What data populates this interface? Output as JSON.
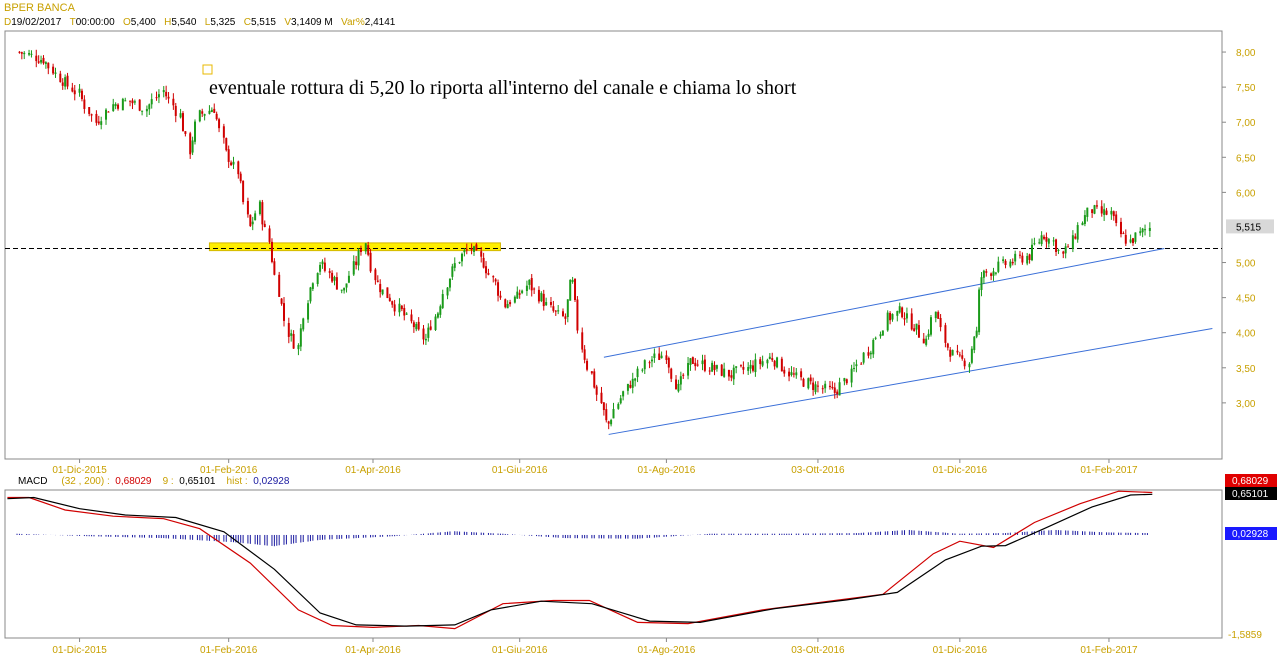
{
  "header": {
    "title": "BPER BANCA",
    "ohlc": [
      {
        "k": "D",
        "v": "19/02/2017"
      },
      {
        "k": "T",
        "v": "00:00:00"
      },
      {
        "k": "O",
        "v": "5,400"
      },
      {
        "k": "H",
        "v": "5,540"
      },
      {
        "k": "L",
        "v": "5,325"
      },
      {
        "k": "C",
        "v": "5,515"
      },
      {
        "k": "V",
        "v": "3,1409 M"
      },
      {
        "k": "Var%",
        "v": "2,4141"
      }
    ]
  },
  "macd_header": {
    "name": "MACD",
    "params": "(32 , 200)",
    "macd_value": "0,68029",
    "signal_period": "9",
    "signal_value": "0,65101",
    "hist_label": "hist",
    "hist_value": "0,02928"
  },
  "chart_data": [
    {
      "type": "candlestick",
      "title": "BPER BANCA",
      "ylim": [
        2.2,
        8.3
      ],
      "yticks": [
        {
          "v": 8.0,
          "label": "8,00"
        },
        {
          "v": 7.5,
          "label": "7,50"
        },
        {
          "v": 7.0,
          "label": "7,00"
        },
        {
          "v": 6.5,
          "label": "6,50"
        },
        {
          "v": 6.0,
          "label": "6,00"
        },
        {
          "v": 5.0,
          "label": "5,00"
        },
        {
          "v": 4.5,
          "label": "4,50"
        },
        {
          "v": 4.0,
          "label": "4,00"
        },
        {
          "v": 3.5,
          "label": "3,50"
        },
        {
          "v": 3.0,
          "label": "3,00"
        }
      ],
      "xticks": [
        "01-Dic-2015",
        "01-Feb-2016",
        "01-Apr-2016",
        "01-Giu-2016",
        "01-Ago-2016",
        "03-Ott-2016",
        "01-Dic-2016",
        "01-Feb-2017"
      ],
      "last_price": {
        "value": 5.515,
        "label": "5,515"
      },
      "series": [
        {
          "date": "2015-11-06",
          "close": 8.0
        },
        {
          "date": "2015-11-16",
          "close": 7.9
        },
        {
          "date": "2015-11-24",
          "close": 7.6
        },
        {
          "date": "2015-12-01",
          "close": 7.4
        },
        {
          "date": "2015-12-08",
          "close": 7.0
        },
        {
          "date": "2015-12-15",
          "close": 7.25
        },
        {
          "date": "2015-12-22",
          "close": 7.3
        },
        {
          "date": "2015-12-29",
          "close": 7.2
        },
        {
          "date": "2016-01-05",
          "close": 7.45
        },
        {
          "date": "2016-01-12",
          "close": 7.1
        },
        {
          "date": "2016-01-16",
          "close": 6.6
        },
        {
          "date": "2016-01-20",
          "close": 7.1
        },
        {
          "date": "2016-01-26",
          "close": 7.2
        },
        {
          "date": "2016-02-01",
          "close": 6.5
        },
        {
          "date": "2016-02-05",
          "close": 6.3
        },
        {
          "date": "2016-02-10",
          "close": 5.5
        },
        {
          "date": "2016-02-14",
          "close": 5.8
        },
        {
          "date": "2016-02-18",
          "close": 5.3
        },
        {
          "date": "2016-02-22",
          "close": 4.6
        },
        {
          "date": "2016-02-26",
          "close": 4.0
        },
        {
          "date": "2016-03-01",
          "close": 3.8
        },
        {
          "date": "2016-03-05",
          "close": 4.5
        },
        {
          "date": "2016-03-10",
          "close": 5.0
        },
        {
          "date": "2016-03-15",
          "close": 4.8
        },
        {
          "date": "2016-03-20",
          "close": 4.6
        },
        {
          "date": "2016-03-25",
          "close": 5.0
        },
        {
          "date": "2016-03-29",
          "close": 5.3
        },
        {
          "date": "2016-04-03",
          "close": 4.7
        },
        {
          "date": "2016-04-08",
          "close": 4.5
        },
        {
          "date": "2016-04-13",
          "close": 4.3
        },
        {
          "date": "2016-04-18",
          "close": 4.1
        },
        {
          "date": "2016-04-23",
          "close": 3.9
        },
        {
          "date": "2016-04-28",
          "close": 4.3
        },
        {
          "date": "2016-05-03",
          "close": 4.8
        },
        {
          "date": "2016-05-08",
          "close": 5.1
        },
        {
          "date": "2016-05-12",
          "close": 5.2
        },
        {
          "date": "2016-05-17",
          "close": 5.0
        },
        {
          "date": "2016-05-22",
          "close": 4.7
        },
        {
          "date": "2016-05-26",
          "close": 4.4
        },
        {
          "date": "2016-05-31",
          "close": 4.5
        },
        {
          "date": "2016-06-05",
          "close": 4.7
        },
        {
          "date": "2016-06-10",
          "close": 4.5
        },
        {
          "date": "2016-06-15",
          "close": 4.3
        },
        {
          "date": "2016-06-20",
          "close": 4.2
        },
        {
          "date": "2016-06-23",
          "close": 4.7
        },
        {
          "date": "2016-06-27",
          "close": 3.8
        },
        {
          "date": "2016-07-01",
          "close": 3.4
        },
        {
          "date": "2016-07-05",
          "close": 3.0
        },
        {
          "date": "2016-07-08",
          "close": 2.7
        },
        {
          "date": "2016-07-12",
          "close": 3.0
        },
        {
          "date": "2016-07-18",
          "close": 3.3
        },
        {
          "date": "2016-07-25",
          "close": 3.6
        },
        {
          "date": "2016-08-01",
          "close": 3.7
        },
        {
          "date": "2016-08-06",
          "close": 3.2
        },
        {
          "date": "2016-08-12",
          "close": 3.6
        },
        {
          "date": "2016-08-20",
          "close": 3.5
        },
        {
          "date": "2016-08-28",
          "close": 3.4
        },
        {
          "date": "2016-09-05",
          "close": 3.5
        },
        {
          "date": "2016-09-14",
          "close": 3.65
        },
        {
          "date": "2016-09-22",
          "close": 3.4
        },
        {
          "date": "2016-10-01",
          "close": 3.25
        },
        {
          "date": "2016-10-10",
          "close": 3.15
        },
        {
          "date": "2016-10-17",
          "close": 3.4
        },
        {
          "date": "2016-10-25",
          "close": 3.8
        },
        {
          "date": "2016-11-01",
          "close": 4.2
        },
        {
          "date": "2016-11-07",
          "close": 4.3
        },
        {
          "date": "2016-11-12",
          "close": 4.1
        },
        {
          "date": "2016-11-17",
          "close": 3.9
        },
        {
          "date": "2016-11-21",
          "close": 4.3
        },
        {
          "date": "2016-11-26",
          "close": 3.8
        },
        {
          "date": "2016-12-01",
          "close": 3.6
        },
        {
          "date": "2016-12-05",
          "close": 3.6
        },
        {
          "date": "2016-12-08",
          "close": 4.0
        },
        {
          "date": "2016-12-10",
          "close": 4.8
        },
        {
          "date": "2016-12-15",
          "close": 4.9
        },
        {
          "date": "2016-12-22",
          "close": 5.0
        },
        {
          "date": "2016-12-30",
          "close": 5.1
        },
        {
          "date": "2017-01-05",
          "close": 5.4
        },
        {
          "date": "2017-01-09",
          "close": 5.3
        },
        {
          "date": "2017-01-13",
          "close": 5.1
        },
        {
          "date": "2017-01-17",
          "close": 5.3
        },
        {
          "date": "2017-01-21",
          "close": 5.6
        },
        {
          "date": "2017-01-25",
          "close": 5.75
        },
        {
          "date": "2017-01-29",
          "close": 5.7
        },
        {
          "date": "2017-02-02",
          "close": 5.7
        },
        {
          "date": "2017-02-06",
          "close": 5.4
        },
        {
          "date": "2017-02-10",
          "close": 5.3
        },
        {
          "date": "2017-02-14",
          "close": 5.4
        },
        {
          "date": "2017-02-19",
          "close": 5.515
        }
      ],
      "annotations": {
        "text": "eventuale rottura di 5,20 lo riporta all'interno del canale e chiama lo short",
        "support_level": 5.2,
        "resistance_zone": {
          "from": "2016-01-24",
          "to": "2016-05-24",
          "low": 5.17,
          "high": 5.28
        },
        "channel_upper": [
          {
            "date": "2016-07-06",
            "price": 3.65
          },
          {
            "date": "2017-02-24",
            "price": 5.2
          }
        ],
        "channel_lower": [
          {
            "date": "2016-07-08",
            "price": 2.55
          },
          {
            "date": "2017-03-16",
            "price": 4.06
          }
        ]
      },
      "colors": {
        "up": "#1a9a1a",
        "down": "#d00000",
        "zone": "#ffee00",
        "channel": "#3a6fd8",
        "axis_labels": "#c8a000"
      }
    },
    {
      "type": "line",
      "title": "MACD",
      "ylim": [
        -1.65,
        0.72
      ],
      "yticks": [
        {
          "v": -1.5859,
          "label": "-1,5859"
        }
      ],
      "xticks": [
        "01-Dic-2015",
        "01-Feb-2016",
        "01-Apr-2016",
        "01-Giu-2016",
        "01-Ago-2016",
        "03-Ott-2016",
        "01-Dic-2016",
        "01-Feb-2017"
      ],
      "series": [
        {
          "name": "MACD",
          "color": "#d00000",
          "points": [
            {
              "date": "2015-11-01",
              "v": 0.6
            },
            {
              "date": "2015-11-10",
              "v": 0.6
            },
            {
              "date": "2015-11-25",
              "v": 0.4
            },
            {
              "date": "2015-12-15",
              "v": 0.3
            },
            {
              "date": "2016-01-05",
              "v": 0.26
            },
            {
              "date": "2016-01-20",
              "v": 0.1
            },
            {
              "date": "2016-02-10",
              "v": -0.45
            },
            {
              "date": "2016-03-01",
              "v": -1.2
            },
            {
              "date": "2016-03-15",
              "v": -1.45
            },
            {
              "date": "2016-04-01",
              "v": -1.48
            },
            {
              "date": "2016-04-20",
              "v": -1.45
            },
            {
              "date": "2016-05-05",
              "v": -1.5
            },
            {
              "date": "2016-05-25",
              "v": -1.1
            },
            {
              "date": "2016-06-15",
              "v": -1.05
            },
            {
              "date": "2016-06-30",
              "v": -1.05
            },
            {
              "date": "2016-07-20",
              "v": -1.4
            },
            {
              "date": "2016-08-10",
              "v": -1.42
            },
            {
              "date": "2016-09-10",
              "v": -1.2
            },
            {
              "date": "2016-10-10",
              "v": -1.05
            },
            {
              "date": "2016-10-30",
              "v": -0.95
            },
            {
              "date": "2016-11-20",
              "v": -0.3
            },
            {
              "date": "2016-12-01",
              "v": -0.1
            },
            {
              "date": "2016-12-15",
              "v": -0.2
            },
            {
              "date": "2017-01-01",
              "v": 0.2
            },
            {
              "date": "2017-01-20",
              "v": 0.5
            },
            {
              "date": "2017-02-05",
              "v": 0.7
            },
            {
              "date": "2017-02-19",
              "v": 0.68
            }
          ]
        },
        {
          "name": "9",
          "color": "#000000",
          "points": [
            {
              "date": "2015-11-01",
              "v": 0.58
            },
            {
              "date": "2015-11-12",
              "v": 0.6
            },
            {
              "date": "2015-12-01",
              "v": 0.42
            },
            {
              "date": "2015-12-20",
              "v": 0.32
            },
            {
              "date": "2016-01-10",
              "v": 0.28
            },
            {
              "date": "2016-01-30",
              "v": 0.05
            },
            {
              "date": "2016-02-20",
              "v": -0.55
            },
            {
              "date": "2016-03-10",
              "v": -1.25
            },
            {
              "date": "2016-03-25",
              "v": -1.44
            },
            {
              "date": "2016-04-15",
              "v": -1.46
            },
            {
              "date": "2016-05-05",
              "v": -1.44
            },
            {
              "date": "2016-05-20",
              "v": -1.2
            },
            {
              "date": "2016-06-10",
              "v": -1.06
            },
            {
              "date": "2016-07-01",
              "v": -1.1
            },
            {
              "date": "2016-07-25",
              "v": -1.38
            },
            {
              "date": "2016-08-15",
              "v": -1.4
            },
            {
              "date": "2016-09-15",
              "v": -1.18
            },
            {
              "date": "2016-10-15",
              "v": -1.04
            },
            {
              "date": "2016-11-05",
              "v": -0.92
            },
            {
              "date": "2016-11-25",
              "v": -0.4
            },
            {
              "date": "2016-12-10",
              "v": -0.18
            },
            {
              "date": "2016-12-20",
              "v": -0.17
            },
            {
              "date": "2017-01-05",
              "v": 0.1
            },
            {
              "date": "2017-01-25",
              "v": 0.45
            },
            {
              "date": "2017-02-10",
              "v": 0.64
            },
            {
              "date": "2017-02-19",
              "v": 0.651
            }
          ]
        },
        {
          "name": "hist",
          "color": "#1a1aa0",
          "type": "bar",
          "points": [
            {
              "date": "2015-11-05",
              "v": 0.02
            },
            {
              "date": "2015-12-05",
              "v": -0.02
            },
            {
              "date": "2016-01-05",
              "v": -0.05
            },
            {
              "date": "2016-02-05",
              "v": -0.12
            },
            {
              "date": "2016-02-20",
              "v": -0.18
            },
            {
              "date": "2016-03-10",
              "v": -0.08
            },
            {
              "date": "2016-04-10",
              "v": -0.02
            },
            {
              "date": "2016-05-05",
              "v": 0.06
            },
            {
              "date": "2016-05-25",
              "v": 0.02
            },
            {
              "date": "2016-06-20",
              "v": -0.05
            },
            {
              "date": "2016-07-20",
              "v": -0.06
            },
            {
              "date": "2016-08-20",
              "v": 0.02
            },
            {
              "date": "2016-09-20",
              "v": 0.02
            },
            {
              "date": "2016-10-20",
              "v": 0.03
            },
            {
              "date": "2016-11-10",
              "v": 0.08
            },
            {
              "date": "2016-12-01",
              "v": 0.02
            },
            {
              "date": "2016-12-20",
              "v": 0.03
            },
            {
              "date": "2017-01-10",
              "v": 0.08
            },
            {
              "date": "2017-02-01",
              "v": 0.04
            },
            {
              "date": "2017-02-19",
              "v": 0.029
            }
          ]
        }
      ],
      "tags": [
        {
          "label": "0,68029",
          "bg": "#e00000",
          "fg": "#ffffff"
        },
        {
          "label": "0,65101",
          "bg": "#000000",
          "fg": "#ffffff"
        },
        {
          "label": "0,02928",
          "bg": "#1a1aff",
          "fg": "#ffffff"
        }
      ]
    }
  ]
}
